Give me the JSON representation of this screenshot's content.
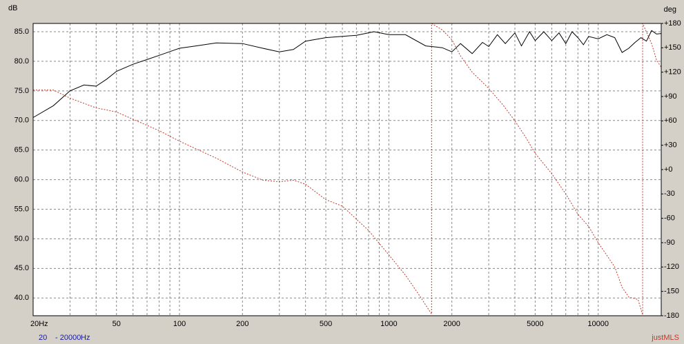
{
  "chart_data": {
    "type": "line",
    "ylabel": "dB",
    "y2label": "deg",
    "xscale": "log",
    "grid": true,
    "xlim": [
      20,
      20000
    ],
    "ylim": [
      37,
      86.4
    ],
    "y2lim": [
      -180,
      180
    ],
    "xticks": [
      {
        "value": 20,
        "label": "20Hz"
      },
      50,
      100,
      200,
      500,
      1000,
      2000,
      5000,
      10000
    ],
    "xminor": [
      30,
      40,
      60,
      70,
      80,
      90,
      300,
      400,
      600,
      700,
      800,
      900,
      3000,
      4000,
      6000,
      7000,
      8000,
      9000,
      20000
    ],
    "yticks": [
      {
        "value": 40,
        "label": "40.0"
      },
      {
        "value": 45,
        "label": "45.0"
      },
      {
        "value": 50,
        "label": "50.0"
      },
      {
        "value": 55,
        "label": "55.0"
      },
      {
        "value": 60,
        "label": "60.0"
      },
      {
        "value": 65,
        "label": "65.0"
      },
      {
        "value": 70,
        "label": "70.0"
      },
      {
        "value": 75,
        "label": "75.0"
      },
      {
        "value": 80,
        "label": "80.0"
      },
      {
        "value": 85,
        "label": "85.0"
      }
    ],
    "y2ticks": [
      {
        "value": 180,
        "label": "+180"
      },
      {
        "value": 150,
        "label": "+150"
      },
      {
        "value": 120,
        "label": "+120"
      },
      {
        "value": 90,
        "label": "+90"
      },
      {
        "value": 60,
        "label": "+60"
      },
      {
        "value": 30,
        "label": "+30"
      },
      {
        "value": 0,
        "label": "+0"
      },
      -30,
      -60,
      -90,
      -120,
      -150,
      -180
    ],
    "series": [
      {
        "color": "#000000",
        "dashed": false,
        "x": [
          20,
          25,
          30,
          35,
          40,
          45,
          50,
          60,
          70,
          80,
          100,
          120,
          150,
          200,
          250,
          300,
          350,
          400,
          500,
          700,
          850,
          1000,
          1200,
          1500,
          1800,
          2000,
          2200,
          2500,
          2800,
          3000,
          3300,
          3600,
          4000,
          4300,
          4700,
          5000,
          5500,
          6000,
          6500,
          7000,
          7500,
          8000,
          8500,
          9000,
          10000,
          11000,
          12000,
          13000,
          14000,
          15000,
          16000,
          17000,
          18000,
          19000,
          20000
        ],
        "values": [
          70.5,
          72.5,
          75,
          76,
          75.8,
          77,
          78.3,
          79.5,
          80.3,
          81,
          82.2,
          82.6,
          83.1,
          83,
          82.2,
          81.6,
          82,
          83.4,
          84,
          84.4,
          85,
          84.5,
          84.5,
          82.6,
          82.3,
          81.6,
          83,
          81.3,
          83.2,
          82.5,
          84.5,
          83,
          84.8,
          82.6,
          85,
          83.5,
          85,
          83.5,
          84.8,
          83,
          85,
          84,
          82.8,
          84.2,
          83.8,
          84.5,
          84,
          81.5,
          82.2,
          83.2,
          84,
          83.4,
          85.2,
          84.6,
          84.7
        ]
      },
      {
        "color": "#c0392b",
        "dashed": true,
        "axis": "y2",
        "x": [
          20,
          25,
          30,
          40,
          50,
          60,
          80,
          100,
          150,
          200,
          250,
          300,
          350,
          400,
          500,
          600,
          800,
          1000,
          1200,
          1400,
          1600,
          1600,
          1800,
          2000,
          2200,
          2500,
          3000,
          3500,
          4000,
          4500,
          5000,
          6000,
          7000,
          8000,
          9000,
          10000,
          12000,
          13000,
          14000,
          15500,
          16300,
          16300,
          18000,
          19000,
          20000
        ],
        "values": [
          98,
          98,
          88,
          76,
          71,
          62,
          48,
          35,
          14,
          -3,
          -13,
          -15,
          -13,
          -18,
          -37,
          -45,
          -75,
          -105,
          -130,
          -155,
          -178,
          180,
          172,
          160,
          140,
          120,
          100,
          80,
          60,
          40,
          20,
          -5,
          -30,
          -55,
          -70,
          -90,
          -120,
          -145,
          -157,
          -160,
          -179,
          180,
          155,
          135,
          126
        ]
      }
    ],
    "footer": {
      "start": "20",
      "end": "- 20000",
      "unit": "Hz",
      "brand": "justMLS"
    }
  }
}
